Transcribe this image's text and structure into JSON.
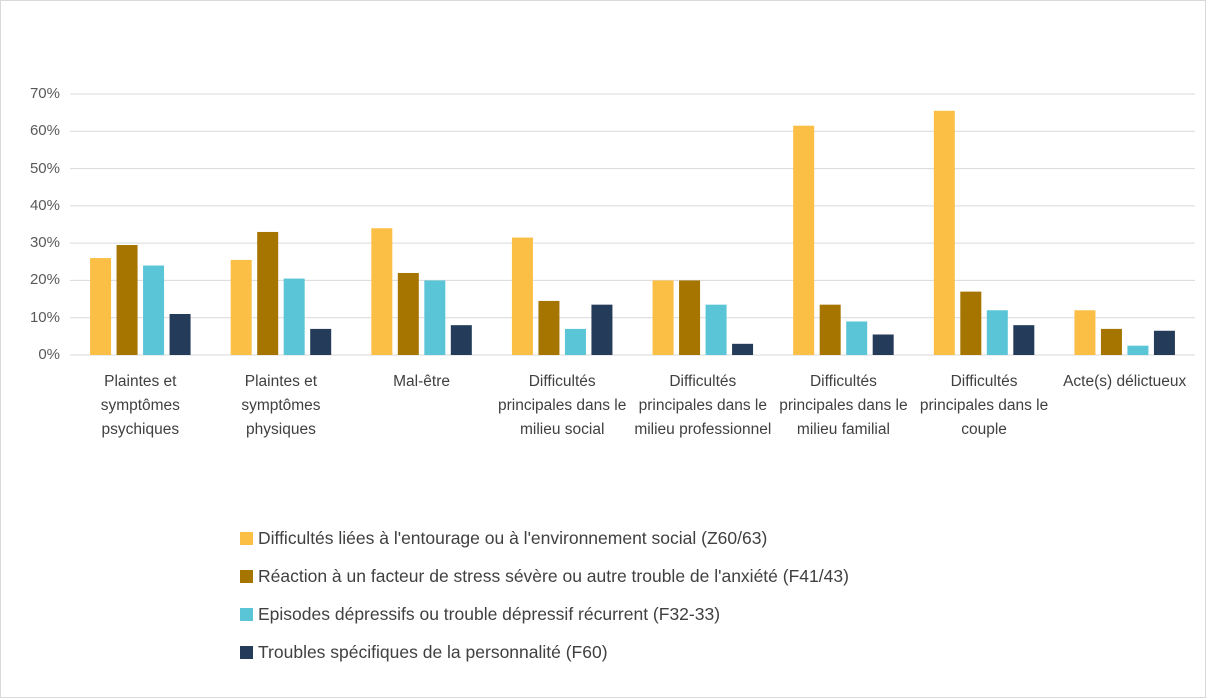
{
  "chart_data": {
    "type": "bar",
    "categories": [
      "Plaintes et symptômes psychiques",
      "Plaintes et symptômes physiques",
      "Mal-être",
      "Difficultés principales dans le milieu social",
      "Difficultés principales dans le milieu professionnel",
      "Difficultés principales dans le milieu familial",
      "Difficultés principales dans le couple",
      "Acte(s) délictueux"
    ],
    "series": [
      {
        "name": "Difficultés liées à l'entourage ou à l'environnement social (Z60/63)",
        "color": "#fbbf45",
        "values": [
          26,
          25.5,
          34,
          31.5,
          20,
          61.5,
          65.5,
          12
        ]
      },
      {
        "name": "Réaction à un facteur de stress sévère ou autre trouble de l'anxiété (F41/43)",
        "color": "#a57500",
        "values": [
          29.5,
          33,
          22,
          14.5,
          20,
          13.5,
          17,
          7
        ]
      },
      {
        "name": "Episodes dépressifs ou trouble dépressif récurrent (F32-33)",
        "color": "#5bc5d8",
        "values": [
          24,
          20.5,
          20,
          7,
          13.5,
          9,
          12,
          2.5
        ]
      },
      {
        "name": "Troubles spécifiques de la personnalité (F60)",
        "color": "#243b5a",
        "values": [
          11,
          7,
          8,
          13.5,
          3,
          5.5,
          8,
          6.5
        ]
      }
    ],
    "ylim": [
      0,
      70
    ],
    "yticks": [
      {
        "value": 0,
        "label": "0%"
      },
      {
        "value": 10,
        "label": "10%"
      },
      {
        "value": 20,
        "label": "20%"
      },
      {
        "value": 30,
        "label": "30%"
      },
      {
        "value": 40,
        "label": "40%"
      },
      {
        "value": 50,
        "label": "50%"
      },
      {
        "value": 60,
        "label": "60%"
      },
      {
        "value": 70,
        "label": "70%"
      }
    ],
    "grid": true
  }
}
